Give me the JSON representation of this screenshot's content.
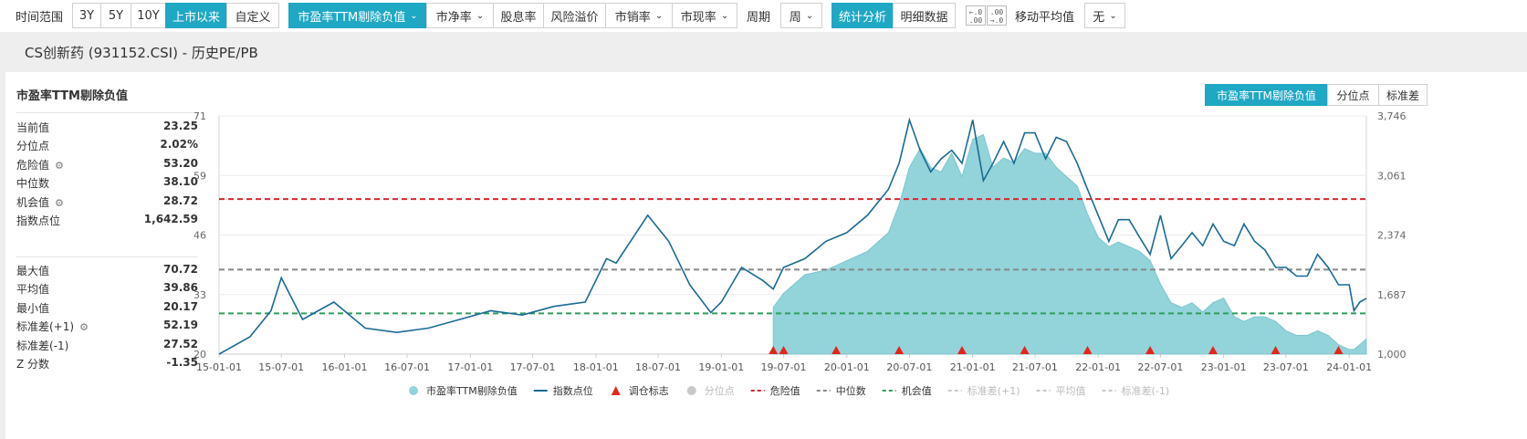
{
  "toolbar": {
    "range_label": "时间范围",
    "range_buttons": [
      "3Y",
      "5Y",
      "10Y",
      "上市以来",
      "自定义"
    ],
    "metric_buttons": [
      "市盈率TTM剔除负值",
      "市净率",
      "股息率",
      "风险溢价",
      "市销率",
      "市现率"
    ],
    "period_label": "周期",
    "period_value": "周",
    "view_buttons": [
      "统计分析",
      "明细数据"
    ],
    "ma_label": "移动平均值",
    "ma_value": "无",
    "decimal_inc_label": "←.0\n.00",
    "decimal_dec_label": ".00\n→.0"
  },
  "page_title": "CS创新药 (931152.CSI) - 历史PE/PB",
  "panel": {
    "title": "市盈率TTM剔除负值",
    "segments": [
      "市盈率TTM剔除负值",
      "分位点",
      "标准差"
    ]
  },
  "stats_top": [
    {
      "label": "当前值",
      "value": "23.25",
      "gear": false
    },
    {
      "label": "分位点",
      "value": "2.02%",
      "gear": false
    },
    {
      "label": "危险值",
      "value": "53.20",
      "gear": true
    },
    {
      "label": "中位数",
      "value": "38.10",
      "gear": false
    },
    {
      "label": "机会值",
      "value": "28.72",
      "gear": true
    },
    {
      "label": "指数点位",
      "value": "1,642.59",
      "gear": false
    }
  ],
  "stats_bottom": [
    {
      "label": "最大值",
      "value": "70.72",
      "gear": false
    },
    {
      "label": "平均值",
      "value": "39.86",
      "gear": false
    },
    {
      "label": "最小值",
      "value": "20.17",
      "gear": false
    },
    {
      "label": "标准差(+1)",
      "value": "52.19",
      "gear": true
    },
    {
      "label": "标准差(-1)",
      "value": "27.52",
      "gear": false
    },
    {
      "label": "Z 分数",
      "value": "-1.35",
      "gear": false
    }
  ],
  "colors": {
    "accent": "#1fa8c4",
    "pe_area": "#93d3da",
    "index_line": "#1a6a94",
    "danger": "#d9262e",
    "median": "#888888",
    "opportunity": "#2f9e5c",
    "marker": "#e3261d",
    "disabled": "#c8c8c8"
  },
  "chart_data": {
    "type": "area",
    "x_dates": [
      "2015-01-01",
      "2015-04-01",
      "2015-06-01",
      "2015-07-01",
      "2015-09-01",
      "2015-12-01",
      "2016-03-01",
      "2016-06-01",
      "2016-09-01",
      "2016-12-01",
      "2017-03-01",
      "2017-06-01",
      "2017-09-01",
      "2017-12-01",
      "2018-02-01",
      "2018-03-01",
      "2018-06-01",
      "2018-08-01",
      "2018-10-01",
      "2018-12-01",
      "2019-01-01",
      "2019-03-01",
      "2019-05-01",
      "2019-06-01",
      "2019-07-01",
      "2019-09-01",
      "2019-11-01",
      "2020-01-01",
      "2020-03-01",
      "2020-05-01",
      "2020-06-01",
      "2020-07-01",
      "2020-08-01",
      "2020-09-01",
      "2020-10-01",
      "2020-11-01",
      "2020-12-01",
      "2021-01-01",
      "2021-02-01",
      "2021-03-01",
      "2021-04-01",
      "2021-05-01",
      "2021-06-01",
      "2021-07-01",
      "2021-08-01",
      "2021-09-01",
      "2021-10-01",
      "2021-11-01",
      "2021-12-01",
      "2022-01-01",
      "2022-02-01",
      "2022-03-01",
      "2022-04-01",
      "2022-05-01",
      "2022-06-01",
      "2022-07-01",
      "2022-08-01",
      "2022-09-01",
      "2022-10-01",
      "2022-11-01",
      "2022-12-01",
      "2023-01-01",
      "2023-02-01",
      "2023-03-01",
      "2023-04-01",
      "2023-05-01",
      "2023-06-01",
      "2023-07-01",
      "2023-08-01",
      "2023-09-01",
      "2023-10-01",
      "2023-11-01",
      "2023-12-01",
      "2024-01-01",
      "2024-01-15",
      "2024-02-01",
      "2024-02-20"
    ],
    "series": [
      {
        "name": "市盈率TTM剔除负值",
        "axis": "left",
        "values": [
          null,
          null,
          null,
          null,
          null,
          null,
          null,
          null,
          null,
          null,
          null,
          null,
          null,
          null,
          null,
          null,
          null,
          null,
          null,
          null,
          null,
          null,
          null,
          30,
          33,
          37,
          38,
          40,
          42,
          46,
          52,
          60,
          64,
          60,
          59,
          63,
          58,
          66,
          67,
          60,
          62,
          61,
          64,
          63,
          63,
          60,
          58,
          56,
          50,
          45,
          43,
          44,
          43,
          42,
          40,
          35,
          31,
          30,
          31,
          29,
          31,
          32,
          28,
          27,
          28,
          28,
          27,
          25,
          24,
          24,
          25,
          24,
          22,
          21,
          21,
          22,
          23.25
        ]
      },
      {
        "name": "指数点位",
        "axis": "right",
        "values": [
          1000,
          1200,
          1500,
          1880,
          1400,
          1600,
          1300,
          1250,
          1300,
          1400,
          1500,
          1450,
          1550,
          1600,
          2100,
          2050,
          2600,
          2300,
          1800,
          1480,
          1600,
          2000,
          1850,
          1750,
          2000,
          2100,
          2300,
          2400,
          2600,
          2900,
          3200,
          3700,
          3350,
          3100,
          3250,
          3350,
          3200,
          3700,
          3000,
          3200,
          3450,
          3200,
          3550,
          3550,
          3250,
          3500,
          3450,
          3200,
          2900,
          2600,
          2300,
          2550,
          2550,
          2350,
          2150,
          2600,
          2100,
          2250,
          2400,
          2250,
          2500,
          2300,
          2250,
          2500,
          2300,
          2200,
          2000,
          2000,
          1900,
          1900,
          2150,
          2000,
          1800,
          1800,
          1500,
          1600,
          1642.59
        ]
      }
    ],
    "reference_lines": [
      {
        "name": "危险值",
        "value": 53.2
      },
      {
        "name": "中位数",
        "value": 38.1
      },
      {
        "name": "机会值",
        "value": 28.72
      }
    ],
    "rebalance_markers": [
      "2019-06-01",
      "2019-07-01",
      "2019-12-01",
      "2020-06-01",
      "2020-12-01",
      "2021-06-01",
      "2021-12-01",
      "2022-06-01",
      "2022-12-01",
      "2023-06-01",
      "2023-12-01"
    ],
    "y_left": {
      "ticks": [
        "71",
        "59",
        "46",
        "33",
        "20"
      ],
      "range": [
        20,
        71
      ]
    },
    "y_right": {
      "ticks": [
        "3,746",
        "3,061",
        "2,374",
        "1,687",
        "1,000"
      ],
      "range": [
        1000,
        3746
      ]
    },
    "x_ticks": [
      "15-01-01",
      "15-07-01",
      "16-01-01",
      "16-07-01",
      "17-01-01",
      "17-07-01",
      "18-01-01",
      "18-07-01",
      "19-01-01",
      "19-07-01",
      "20-01-01",
      "20-07-01",
      "21-01-01",
      "21-07-01",
      "22-01-01",
      "22-07-01",
      "23-01-01",
      "23-07-01",
      "24-01-01"
    ],
    "legend": [
      {
        "label": "市盈率TTM剔除负值",
        "kind": "dot",
        "color": "#93d3da",
        "enabled": true
      },
      {
        "label": "指数点位",
        "kind": "line",
        "color": "#1a6a94",
        "enabled": true
      },
      {
        "label": "调仓标志",
        "kind": "triangle",
        "color": "#e3261d",
        "enabled": true
      },
      {
        "label": "分位点",
        "kind": "dot",
        "color": "#c8c8c8",
        "enabled": false
      },
      {
        "label": "危险值",
        "kind": "dash",
        "color": "#d9262e",
        "enabled": true
      },
      {
        "label": "中位数",
        "kind": "dash",
        "color": "#888888",
        "enabled": true
      },
      {
        "label": "机会值",
        "kind": "dash",
        "color": "#2f9e5c",
        "enabled": true
      },
      {
        "label": "标准差(+1)",
        "kind": "dash",
        "color": "#c8c8c8",
        "enabled": false
      },
      {
        "label": "平均值",
        "kind": "dash",
        "color": "#c8c8c8",
        "enabled": false
      },
      {
        "label": "标准差(-1)",
        "kind": "dash",
        "color": "#c8c8c8",
        "enabled": false
      }
    ],
    "legend_position": "bottom"
  }
}
